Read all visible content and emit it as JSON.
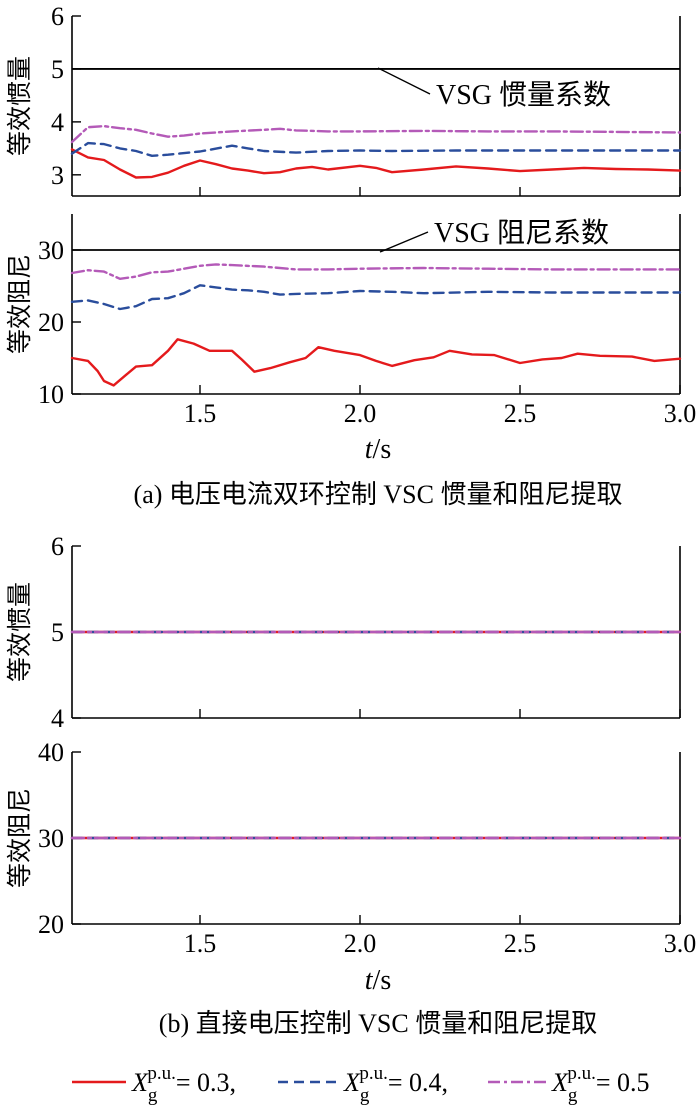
{
  "chart_data": [
    {
      "type": "line",
      "panel": "a-top",
      "ylabel": "等效惯量",
      "xlim": [
        1.1,
        3.0
      ],
      "ylim": [
        2.6,
        6
      ],
      "yticks": [
        "3",
        "4",
        "5",
        "6"
      ],
      "xticks": [],
      "reference": {
        "y": 5,
        "label": "VSG 惯量系数"
      },
      "series": [
        {
          "points": [
            [
              1.1,
              3.48
            ],
            [
              1.15,
              3.33
            ],
            [
              1.2,
              3.28
            ],
            [
              1.25,
              3.1
            ],
            [
              1.3,
              2.95
            ],
            [
              1.35,
              2.96
            ],
            [
              1.4,
              3.04
            ],
            [
              1.45,
              3.17
            ],
            [
              1.5,
              3.27
            ],
            [
              1.55,
              3.2
            ],
            [
              1.6,
              3.12
            ],
            [
              1.65,
              3.08
            ],
            [
              1.7,
              3.03
            ],
            [
              1.75,
              3.05
            ],
            [
              1.8,
              3.12
            ],
            [
              1.85,
              3.15
            ],
            [
              1.9,
              3.1
            ],
            [
              2.0,
              3.17
            ],
            [
              2.05,
              3.13
            ],
            [
              2.1,
              3.05
            ],
            [
              2.2,
              3.1
            ],
            [
              2.3,
              3.16
            ],
            [
              2.4,
              3.12
            ],
            [
              2.5,
              3.07
            ],
            [
              2.6,
              3.1
            ],
            [
              2.7,
              3.13
            ],
            [
              2.8,
              3.11
            ],
            [
              2.9,
              3.1
            ],
            [
              3.0,
              3.08
            ]
          ]
        },
        {
          "points": [
            [
              1.1,
              3.4
            ],
            [
              1.15,
              3.6
            ],
            [
              1.2,
              3.58
            ],
            [
              1.25,
              3.5
            ],
            [
              1.3,
              3.45
            ],
            [
              1.35,
              3.36
            ],
            [
              1.4,
              3.38
            ],
            [
              1.5,
              3.44
            ],
            [
              1.6,
              3.55
            ],
            [
              1.65,
              3.5
            ],
            [
              1.7,
              3.45
            ],
            [
              1.8,
              3.42
            ],
            [
              1.9,
              3.45
            ],
            [
              2.0,
              3.46
            ],
            [
              2.1,
              3.45
            ],
            [
              2.3,
              3.46
            ],
            [
              2.5,
              3.46
            ],
            [
              2.7,
              3.46
            ],
            [
              3.0,
              3.46
            ]
          ]
        },
        {
          "points": [
            [
              1.1,
              3.62
            ],
            [
              1.15,
              3.9
            ],
            [
              1.2,
              3.92
            ],
            [
              1.25,
              3.88
            ],
            [
              1.3,
              3.85
            ],
            [
              1.35,
              3.78
            ],
            [
              1.4,
              3.72
            ],
            [
              1.45,
              3.74
            ],
            [
              1.5,
              3.78
            ],
            [
              1.6,
              3.82
            ],
            [
              1.7,
              3.85
            ],
            [
              1.75,
              3.87
            ],
            [
              1.8,
              3.84
            ],
            [
              1.9,
              3.82
            ],
            [
              2.0,
              3.82
            ],
            [
              2.2,
              3.83
            ],
            [
              2.4,
              3.82
            ],
            [
              2.6,
              3.82
            ],
            [
              2.8,
              3.81
            ],
            [
              3.0,
              3.8
            ]
          ]
        }
      ]
    },
    {
      "type": "line",
      "panel": "a-bottom",
      "ylabel": "等效阻尼",
      "xlim": [
        1.1,
        3.0
      ],
      "ylim": [
        10,
        35
      ],
      "yticks": [
        "10",
        "20",
        "30"
      ],
      "xticks": [
        "1.5",
        "2.0",
        "2.5",
        "3.0"
      ],
      "reference": {
        "y": 30,
        "label": "VSG 阻尼系数"
      },
      "series": [
        {
          "points": [
            [
              1.1,
              15.0
            ],
            [
              1.15,
              14.6
            ],
            [
              1.18,
              13.2
            ],
            [
              1.2,
              11.8
            ],
            [
              1.23,
              11.2
            ],
            [
              1.27,
              12.7
            ],
            [
              1.3,
              13.8
            ],
            [
              1.35,
              14.0
            ],
            [
              1.4,
              16.0
            ],
            [
              1.43,
              17.6
            ],
            [
              1.48,
              17.0
            ],
            [
              1.53,
              16.0
            ],
            [
              1.6,
              16.0
            ],
            [
              1.63,
              14.8
            ],
            [
              1.67,
              13.1
            ],
            [
              1.72,
              13.6
            ],
            [
              1.78,
              14.4
            ],
            [
              1.83,
              15.0
            ],
            [
              1.87,
              16.5
            ],
            [
              1.92,
              16.0
            ],
            [
              2.0,
              15.4
            ],
            [
              2.05,
              14.6
            ],
            [
              2.1,
              13.9
            ],
            [
              2.17,
              14.7
            ],
            [
              2.23,
              15.1
            ],
            [
              2.28,
              16.0
            ],
            [
              2.35,
              15.5
            ],
            [
              2.42,
              15.4
            ],
            [
              2.5,
              14.3
            ],
            [
              2.57,
              14.8
            ],
            [
              2.63,
              15.0
            ],
            [
              2.68,
              15.6
            ],
            [
              2.75,
              15.3
            ],
            [
              2.85,
              15.2
            ],
            [
              2.92,
              14.6
            ],
            [
              3.0,
              14.9
            ]
          ]
        },
        {
          "points": [
            [
              1.1,
              22.8
            ],
            [
              1.15,
              23.0
            ],
            [
              1.2,
              22.5
            ],
            [
              1.25,
              21.8
            ],
            [
              1.3,
              22.2
            ],
            [
              1.35,
              23.2
            ],
            [
              1.4,
              23.3
            ],
            [
              1.45,
              24.0
            ],
            [
              1.5,
              25.1
            ],
            [
              1.55,
              24.8
            ],
            [
              1.6,
              24.5
            ],
            [
              1.65,
              24.4
            ],
            [
              1.7,
              24.2
            ],
            [
              1.75,
              23.8
            ],
            [
              1.8,
              23.9
            ],
            [
              1.9,
              24.0
            ],
            [
              2.0,
              24.3
            ],
            [
              2.1,
              24.2
            ],
            [
              2.2,
              24.0
            ],
            [
              2.4,
              24.2
            ],
            [
              2.6,
              24.1
            ],
            [
              2.8,
              24.1
            ],
            [
              3.0,
              24.1
            ]
          ]
        },
        {
          "points": [
            [
              1.1,
              26.8
            ],
            [
              1.15,
              27.2
            ],
            [
              1.2,
              27.0
            ],
            [
              1.25,
              26.0
            ],
            [
              1.3,
              26.3
            ],
            [
              1.35,
              26.9
            ],
            [
              1.4,
              27.0
            ],
            [
              1.45,
              27.4
            ],
            [
              1.5,
              27.8
            ],
            [
              1.55,
              28.0
            ],
            [
              1.6,
              27.9
            ],
            [
              1.7,
              27.7
            ],
            [
              1.8,
              27.3
            ],
            [
              1.9,
              27.3
            ],
            [
              2.0,
              27.4
            ],
            [
              2.2,
              27.5
            ],
            [
              2.4,
              27.4
            ],
            [
              2.6,
              27.3
            ],
            [
              2.8,
              27.3
            ],
            [
              3.0,
              27.3
            ]
          ]
        }
      ]
    },
    {
      "type": "line",
      "panel": "b-top",
      "ylabel": "等效惯量",
      "xlim": [
        1.1,
        3.0
      ],
      "ylim": [
        4,
        6
      ],
      "yticks": [
        "4",
        "5",
        "6"
      ],
      "xticks": [],
      "series": [
        {
          "points": [
            [
              1.1,
              5
            ],
            [
              3.0,
              5
            ]
          ]
        },
        {
          "points": [
            [
              1.1,
              5
            ],
            [
              3.0,
              5
            ]
          ]
        },
        {
          "points": [
            [
              1.1,
              5
            ],
            [
              3.0,
              5
            ]
          ]
        }
      ]
    },
    {
      "type": "line",
      "panel": "b-bottom",
      "ylabel": "等效阻尼",
      "xlim": [
        1.1,
        3.0
      ],
      "ylim": [
        20,
        40
      ],
      "yticks": [
        "20",
        "30",
        "40"
      ],
      "xticks": [
        "1.5",
        "2.0",
        "2.5",
        "3.0"
      ],
      "series": [
        {
          "points": [
            [
              1.1,
              30
            ],
            [
              3.0,
              30
            ]
          ]
        },
        {
          "points": [
            [
              1.1,
              30
            ],
            [
              3.0,
              30
            ]
          ]
        },
        {
          "points": [
            [
              1.1,
              30
            ],
            [
              3.0,
              30
            ]
          ]
        }
      ]
    }
  ],
  "xlabel": {
    "t": "t",
    "unit": "/s"
  },
  "captions": {
    "a": "(a)  电压电流双环控制 VSC 惯量和阻尼提取",
    "b": "(b)  直接电压控制 VSC 惯量和阻尼提取"
  },
  "legend": [
    {
      "symbol": "X",
      "sub": "g",
      "sup": "p.u.",
      "value": "= 0.3,"
    },
    {
      "symbol": "X",
      "sub": "g",
      "sup": "p.u.",
      "value": "= 0.4,"
    },
    {
      "symbol": "X",
      "sub": "g",
      "sup": "p.u.",
      "value": "= 0.5"
    }
  ],
  "colors": {
    "s1": "#e41a1c",
    "s2": "#2a4d9c",
    "s3": "#b45ab8",
    "ref": "#000000"
  }
}
